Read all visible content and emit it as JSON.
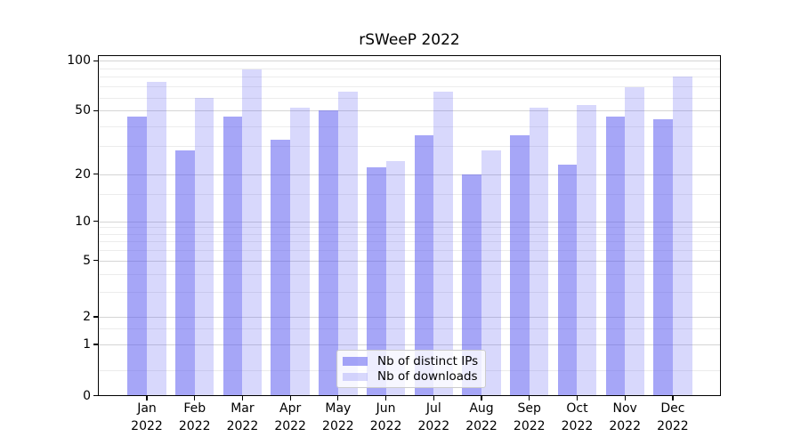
{
  "title": "rSWeeP 2022",
  "chart_data": {
    "type": "bar",
    "title": "rSWeeP 2022",
    "categories": [
      "Jan",
      "Feb",
      "Mar",
      "Apr",
      "May",
      "Jun",
      "Jul",
      "Aug",
      "Sep",
      "Oct",
      "Nov",
      "Dec"
    ],
    "x_tick_year": "2022",
    "series": [
      {
        "name": "Nb of distinct IPs",
        "color": "rgba(85,85,240,0.52)",
        "color_hex_on_white": "#a6a6f2",
        "values": [
          46,
          28,
          46,
          33,
          50,
          22,
          35,
          20,
          35,
          23,
          46,
          44
        ]
      },
      {
        "name": "Nb of downloads",
        "color": "rgba(85,85,240,0.23)",
        "color_hex_on_white": "#dcdcfa",
        "values": [
          75,
          60,
          89,
          52,
          65,
          24,
          65,
          28,
          52,
          54,
          69,
          80
        ]
      }
    ],
    "xlabel": "",
    "ylabel": "",
    "yscale": "symlog",
    "ylim": [
      0,
      109
    ],
    "yticks": [
      0,
      1,
      2,
      5,
      10,
      20,
      50,
      100
    ],
    "yminorticks": [
      0.5,
      1.5,
      3,
      4,
      6,
      7,
      8,
      9,
      15,
      30,
      40,
      60,
      70,
      80,
      90
    ],
    "grid": true,
    "legend_position": "lower center",
    "legend_entries": [
      "Nb of distinct IPs",
      "Nb of downloads"
    ]
  }
}
